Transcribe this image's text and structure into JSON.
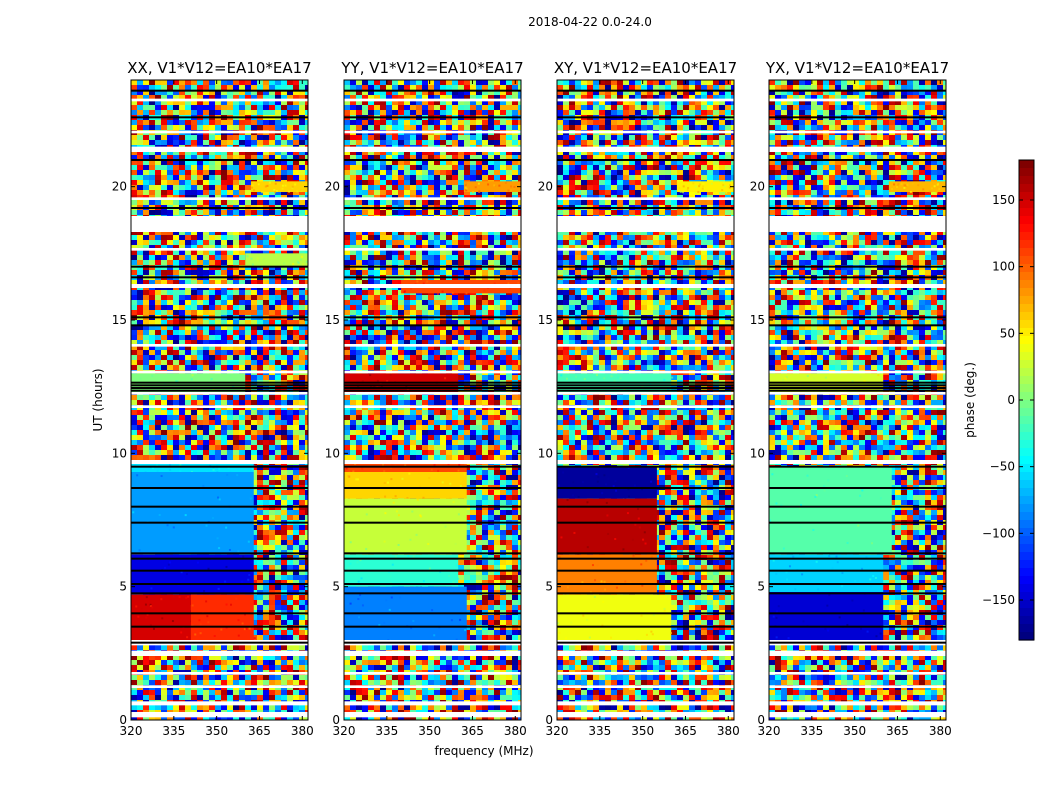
{
  "figure": {
    "suptitle": "2018-04-22 0.0-24.0",
    "xlabel": "frequency (MHz)",
    "ylabel": "UT (hours)",
    "colorbar_label": "phase (deg.)"
  },
  "chart_data": {
    "type": "heatmap",
    "title": "2018-04-22 0.0-24.0",
    "xlabel": "frequency (MHz)",
    "ylabel": "UT (hours)",
    "xlim": [
      320,
      382
    ],
    "ylim": [
      0,
      24
    ],
    "x_ticks": [
      "320",
      "335",
      "350",
      "365",
      "380"
    ],
    "x_tick_values": [
      320,
      335,
      350,
      365,
      380
    ],
    "y_ticks": [
      "0",
      "5",
      "10",
      "15",
      "20"
    ],
    "y_tick_values": [
      0,
      5,
      10,
      15,
      20
    ],
    "colorbar": {
      "label": "phase (deg.)",
      "range": [
        -180,
        180
      ],
      "ticks": [
        "150",
        "100",
        "50",
        "0",
        "−50",
        "−100",
        "−150"
      ],
      "tick_values": [
        150,
        100,
        50,
        0,
        -50,
        -100,
        -150
      ],
      "colormap": "jet"
    },
    "panels": [
      {
        "title": "XX, V1*V12=EA10*EA17",
        "pol": "XX",
        "regions": [
          {
            "t0": 9.3,
            "t1": 9.6,
            "f0": 320,
            "f1": 363,
            "phase": -55
          },
          {
            "t0": 6.2,
            "t1": 9.3,
            "f0": 320,
            "f1": 363,
            "phase": -80
          },
          {
            "t0": 4.7,
            "t1": 6.2,
            "f0": 320,
            "f1": 363,
            "phase": -145
          },
          {
            "t0": 3.0,
            "t1": 4.7,
            "f0": 320,
            "f1": 341,
            "phase": 150
          },
          {
            "t0": 3.0,
            "t1": 4.7,
            "f0": 341,
            "f1": 363,
            "phase": 120
          },
          {
            "t0": 12.3,
            "t1": 13.0,
            "f0": 320,
            "f1": 360,
            "phase": 0
          },
          {
            "t0": 19.8,
            "t1": 20.2,
            "f0": 362,
            "f1": 382,
            "phase": 60
          },
          {
            "t0": 17.0,
            "t1": 17.5,
            "f0": 360,
            "f1": 382,
            "phase": 20
          }
        ]
      },
      {
        "title": "YY, V1*V12=EA10*EA17",
        "pol": "YY",
        "regions": [
          {
            "t0": 9.3,
            "t1": 9.7,
            "f0": 320,
            "f1": 363,
            "phase": 110
          },
          {
            "t0": 8.3,
            "t1": 9.3,
            "f0": 320,
            "f1": 363,
            "phase": 60
          },
          {
            "t0": 6.2,
            "t1": 8.3,
            "f0": 320,
            "f1": 363,
            "phase": 25
          },
          {
            "t0": 5.0,
            "t1": 6.2,
            "f0": 320,
            "f1": 360,
            "phase": -30
          },
          {
            "t0": 3.0,
            "t1": 5.0,
            "f0": 320,
            "f1": 363,
            "phase": -90
          },
          {
            "t0": 12.3,
            "t1": 13.0,
            "f0": 320,
            "f1": 360,
            "phase": 150
          },
          {
            "t0": 19.8,
            "t1": 20.2,
            "f0": 362,
            "f1": 382,
            "phase": 80
          },
          {
            "t0": 16.0,
            "t1": 16.5,
            "f0": 340,
            "f1": 382,
            "phase": 110
          }
        ]
      },
      {
        "title": "XY, V1*V12=EA10*EA17",
        "pol": "XY",
        "regions": [
          {
            "t0": 8.3,
            "t1": 9.5,
            "f0": 320,
            "f1": 355,
            "phase": -170
          },
          {
            "t0": 6.2,
            "t1": 8.3,
            "f0": 320,
            "f1": 355,
            "phase": 160
          },
          {
            "t0": 4.7,
            "t1": 6.2,
            "f0": 320,
            "f1": 355,
            "phase": 90
          },
          {
            "t0": 3.0,
            "t1": 4.7,
            "f0": 320,
            "f1": 360,
            "phase": 40
          },
          {
            "t0": 12.3,
            "t1": 13.0,
            "f0": 320,
            "f1": 360,
            "phase": -20
          },
          {
            "t0": 19.8,
            "t1": 20.2,
            "f0": 362,
            "f1": 382,
            "phase": 50
          }
        ]
      },
      {
        "title": "YX, V1*V12=EA10*EA17",
        "pol": "YX",
        "regions": [
          {
            "t0": 6.2,
            "t1": 9.5,
            "f0": 320,
            "f1": 363,
            "phase": -15
          },
          {
            "t0": 4.8,
            "t1": 6.2,
            "f0": 320,
            "f1": 360,
            "phase": -60
          },
          {
            "t0": 3.0,
            "t1": 4.8,
            "f0": 320,
            "f1": 360,
            "phase": -150
          },
          {
            "t0": 12.3,
            "t1": 13.0,
            "f0": 320,
            "f1": 360,
            "phase": 30
          },
          {
            "t0": 19.8,
            "t1": 20.2,
            "f0": 362,
            "f1": 382,
            "phase": 70
          }
        ]
      }
    ],
    "gaps_hours": [
      [
        0.1,
        0.3
      ],
      [
        0.55,
        0.7
      ],
      [
        1.2,
        1.3
      ],
      [
        1.7,
        1.8
      ],
      [
        2.4,
        2.6
      ],
      [
        2.8,
        3.0
      ],
      [
        9.6,
        9.75
      ],
      [
        11.7,
        11.8
      ],
      [
        12.2,
        12.3
      ],
      [
        13.0,
        13.1
      ],
      [
        14.0,
        14.1
      ],
      [
        16.2,
        16.35
      ],
      [
        17.6,
        17.7
      ],
      [
        18.3,
        18.9
      ],
      [
        19.5,
        19.6
      ],
      [
        21.3,
        21.5
      ],
      [
        22.0,
        22.1
      ],
      [
        23.2,
        23.3
      ]
    ],
    "flag_lines_hours": [
      2.9,
      3.5,
      4.0,
      4.75,
      5.1,
      5.6,
      6.05,
      6.25,
      7.4,
      8.0,
      8.7,
      9.5,
      12.35,
      12.45,
      12.55,
      12.65,
      14.8,
      15.1,
      16.6,
      17.0,
      19.2,
      21.0,
      22.6,
      23.6
    ]
  }
}
